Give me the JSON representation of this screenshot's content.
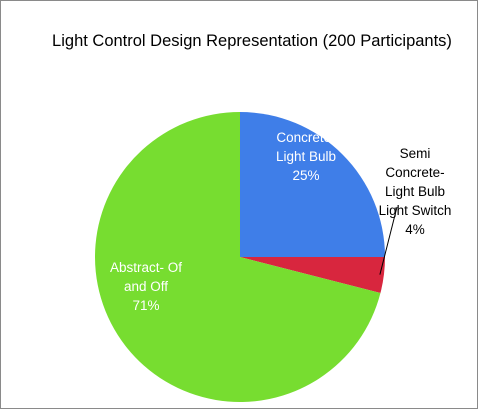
{
  "chart_data": {
    "type": "pie",
    "title": "Light Control Design Representation (200 Participants)",
    "slices": [
      {
        "label_lines": [
          "Concrete-",
          "Light Bulb"
        ],
        "percent_label": "25%",
        "value": 25,
        "color": "#3f7ee8",
        "label_color": "#ffffff"
      },
      {
        "label_lines": [
          "Semi",
          "Concrete-",
          "Light Bulb",
          "Light Switch"
        ],
        "percent_label": "4%",
        "value": 4,
        "color": "#d8263e",
        "label_color": "#000000"
      },
      {
        "label_lines": [
          "Abstract- Of",
          "and Off"
        ],
        "percent_label": "71%",
        "value": 71,
        "color": "#77dd30",
        "label_color": "#ffffff"
      }
    ],
    "start_angle": "12 o'clock",
    "direction": "clockwise",
    "legend": "none"
  }
}
